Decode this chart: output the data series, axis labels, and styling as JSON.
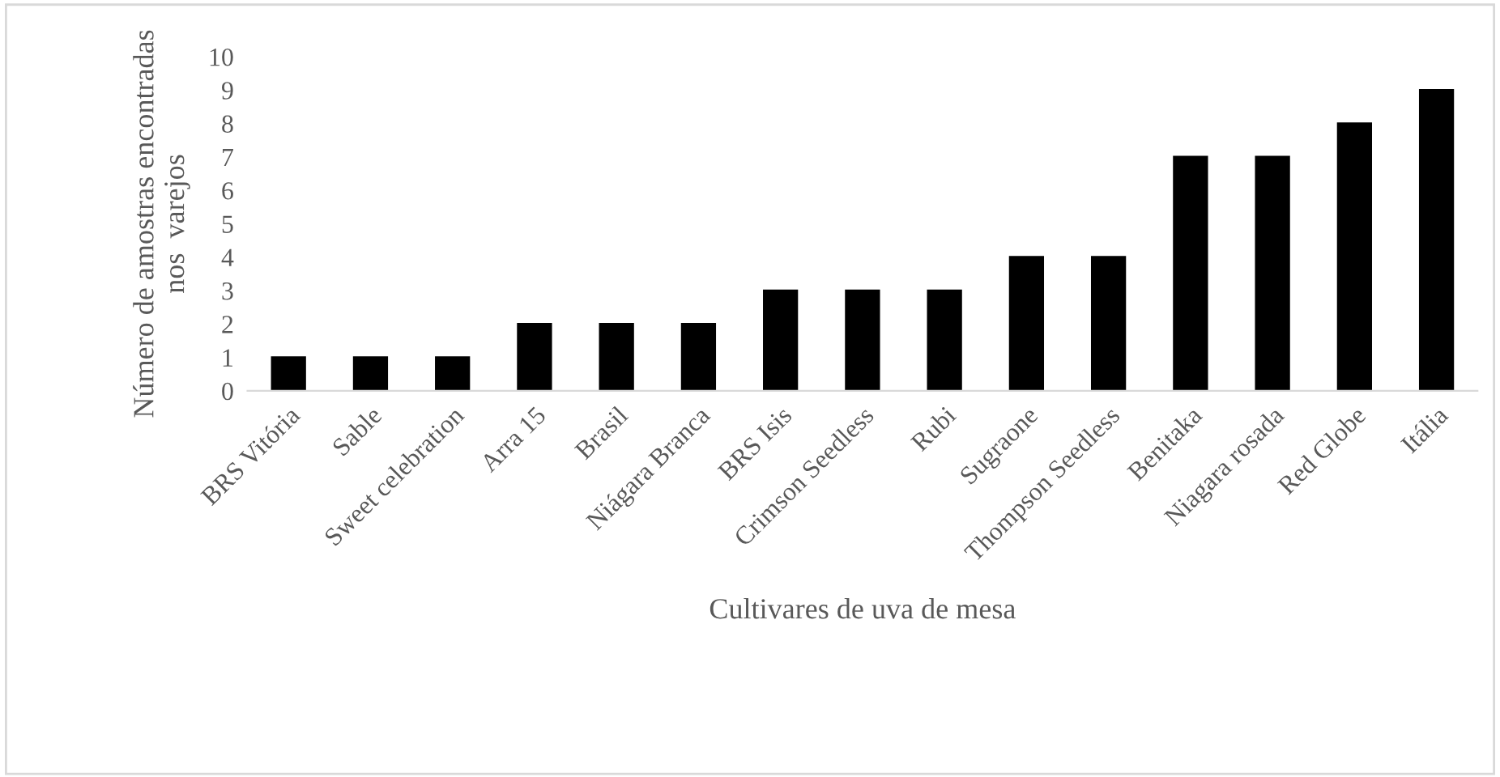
{
  "chart_data": {
    "type": "bar",
    "xlabel": "Cultivares de uva de mesa",
    "ylabel": "Número de amostras encontradas\nnos  varejos",
    "categories": [
      "BRS Vitória",
      "Sable",
      "Sweet celebration",
      "Arra 15",
      "Brasil",
      "Niágara Branca",
      "BRS Isis",
      "Crimson Seedless",
      "Rubi",
      "Sugraone",
      "Thompson Seedless",
      "Benitaka",
      "Niagara rosada",
      "Red Globe",
      "Itália"
    ],
    "values": [
      1,
      1,
      1,
      2,
      2,
      2,
      3,
      3,
      3,
      4,
      4,
      7,
      7,
      8,
      9
    ],
    "color": "#000000",
    "ylim": [
      0,
      10
    ],
    "yticks": [
      0,
      1,
      2,
      3,
      4,
      5,
      6,
      7,
      8,
      9,
      10
    ],
    "grid": false,
    "legend": false
  }
}
